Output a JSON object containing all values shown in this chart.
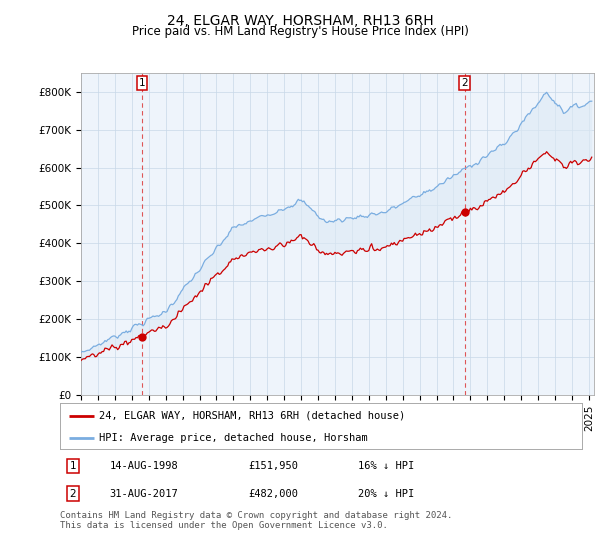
{
  "title": "24, ELGAR WAY, HORSHAM, RH13 6RH",
  "subtitle": "Price paid vs. HM Land Registry's House Price Index (HPI)",
  "xlim_start": 1995.0,
  "xlim_end": 2025.3,
  "ylim_min": 0,
  "ylim_max": 850000,
  "yticks": [
    0,
    100000,
    200000,
    300000,
    400000,
    500000,
    600000,
    700000,
    800000
  ],
  "ytick_labels": [
    "£0",
    "£100K",
    "£200K",
    "£300K",
    "£400K",
    "£500K",
    "£600K",
    "£700K",
    "£800K"
  ],
  "sale1_date": 1998.62,
  "sale1_price": 151950,
  "sale2_date": 2017.66,
  "sale2_price": 482000,
  "sale1_date_str": "14-AUG-1998",
  "sale1_price_str": "£151,950",
  "sale1_hpi_str": "16% ↓ HPI",
  "sale2_date_str": "31-AUG-2017",
  "sale2_price_str": "£482,000",
  "sale2_hpi_str": "20% ↓ HPI",
  "legend_label1": "24, ELGAR WAY, HORSHAM, RH13 6RH (detached house)",
  "legend_label2": "HPI: Average price, detached house, Horsham",
  "footnote": "Contains HM Land Registry data © Crown copyright and database right 2024.\nThis data is licensed under the Open Government Licence v3.0.",
  "line_color_property": "#cc0000",
  "line_color_hpi": "#7aade0",
  "fill_color_hpi": "#dce9f5",
  "marker_color": "#cc0000",
  "background_color": "#ffffff",
  "plot_bg_color": "#eef4fb",
  "grid_color": "#c8d8e8",
  "vline_color": "#dd4444",
  "title_fontsize": 10,
  "subtitle_fontsize": 8.5,
  "tick_fontsize": 7.5,
  "legend_fontsize": 7.5,
  "footnote_fontsize": 6.5
}
